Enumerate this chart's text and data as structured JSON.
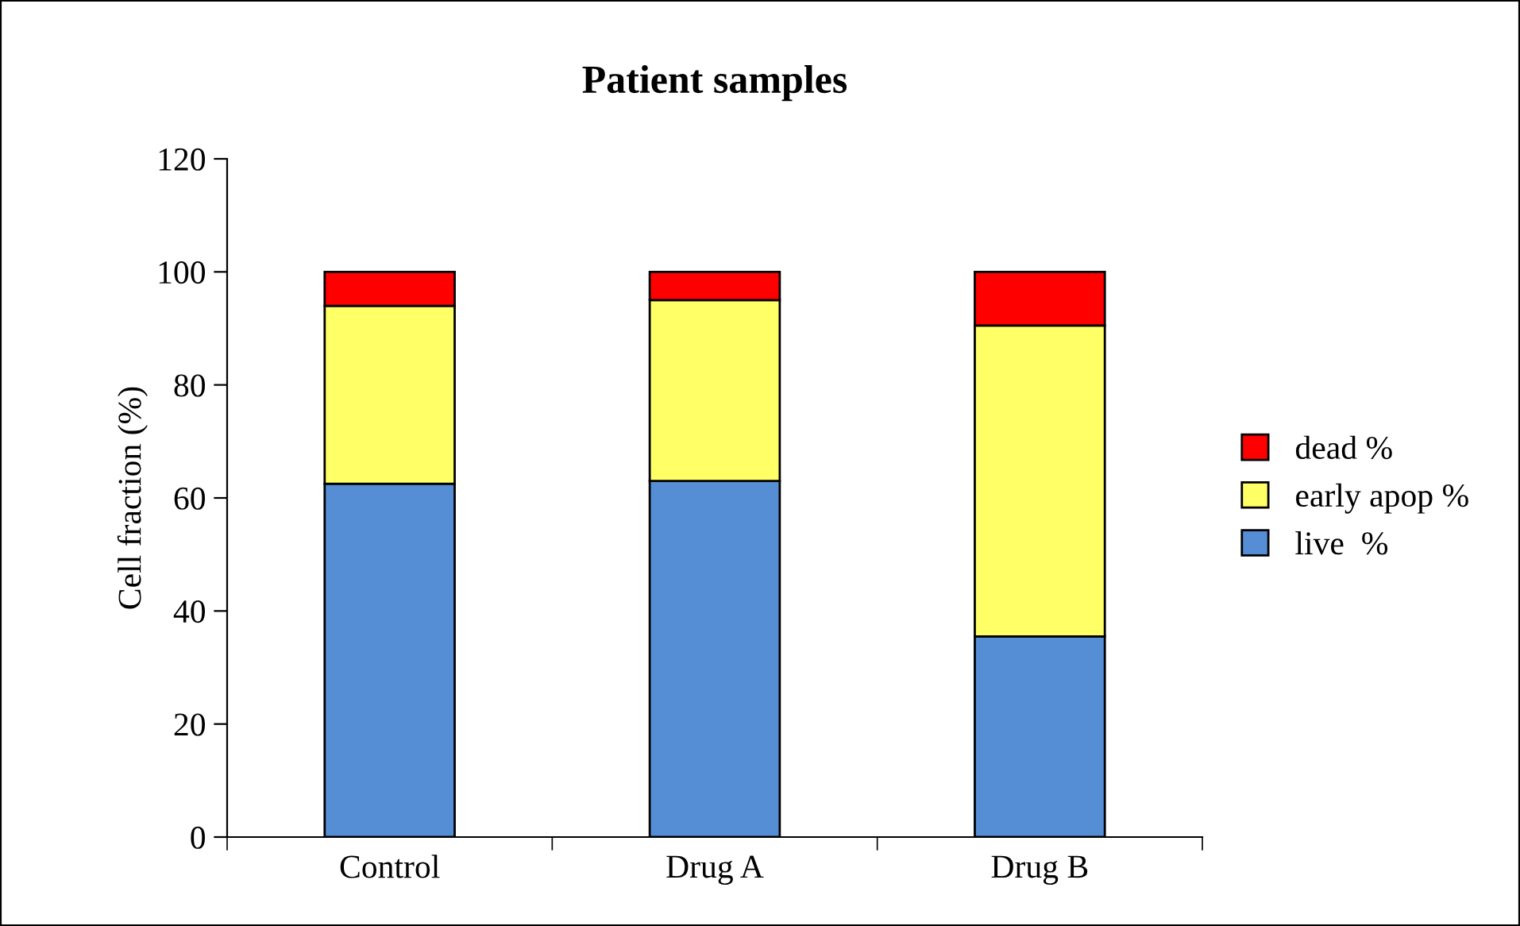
{
  "chart_data": {
    "type": "bar",
    "title": "Patient samples",
    "ylabel": "Cell fraction (%)",
    "categories": [
      "Control",
      "Drug A",
      "Drug B"
    ],
    "stacked": true,
    "series": [
      {
        "name": "live  %",
        "color": "#558ed5",
        "values": [
          62.5,
          63,
          35.5
        ]
      },
      {
        "name": "early apop %",
        "color": "#ffff66",
        "values": [
          31.5,
          32,
          55
        ]
      },
      {
        "name": "dead %",
        "color": "#ff0000",
        "values": [
          6,
          5,
          9.5
        ]
      }
    ],
    "ylim": [
      0,
      120
    ],
    "yticks": [
      0,
      20,
      40,
      60,
      80,
      100,
      120
    ],
    "grid": false,
    "legend": "right"
  }
}
